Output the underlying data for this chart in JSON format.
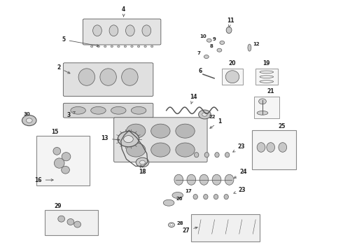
{
  "bg_color": "#ffffff",
  "line_color": "#555555",
  "text_color": "#222222",
  "fig_width": 4.9,
  "fig_height": 3.6,
  "dpi": 100
}
